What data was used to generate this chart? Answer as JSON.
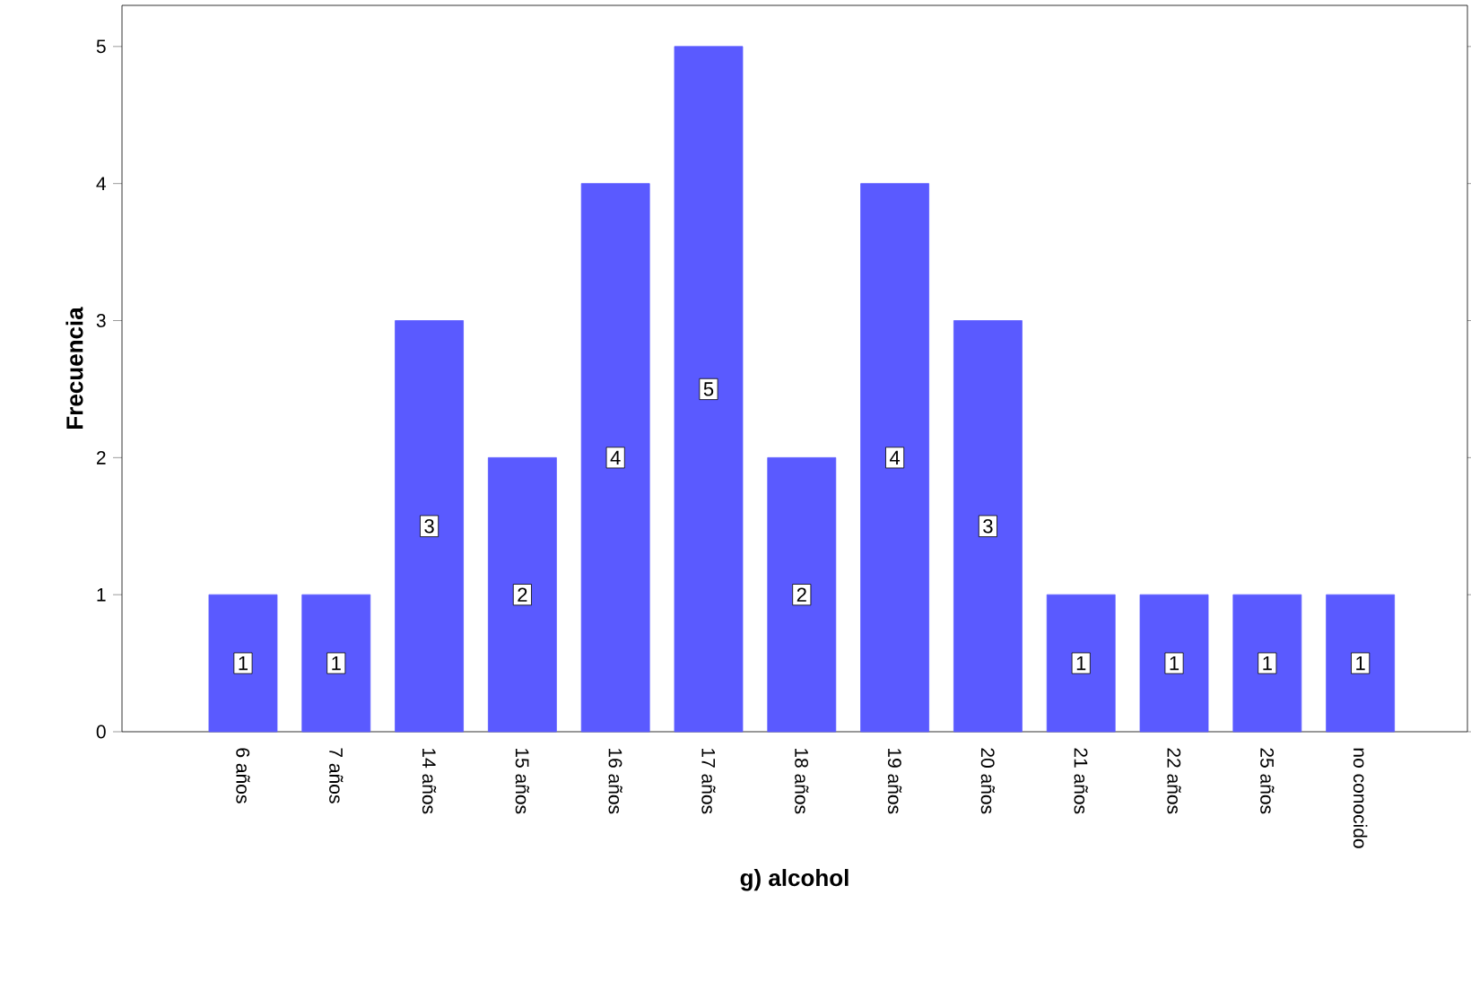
{
  "chart_data": {
    "type": "bar",
    "xlabel": "g) alcohol",
    "ylabel": "Frecuencia",
    "categories": [
      "6 años",
      "7 años",
      "14 años",
      "15 años",
      "16 años",
      "17 años",
      "18 años",
      "19 años",
      "20 años",
      "21 años",
      "22 años",
      "25 años",
      "no conocido"
    ],
    "values": [
      1,
      1,
      3,
      2,
      4,
      5,
      2,
      4,
      3,
      1,
      1,
      1,
      1
    ],
    "color": "#5a5aff",
    "ylim": [
      0,
      5.3
    ],
    "yticks": [
      0,
      1,
      2,
      3,
      4,
      5
    ],
    "grid": false,
    "data_labels": true
  }
}
